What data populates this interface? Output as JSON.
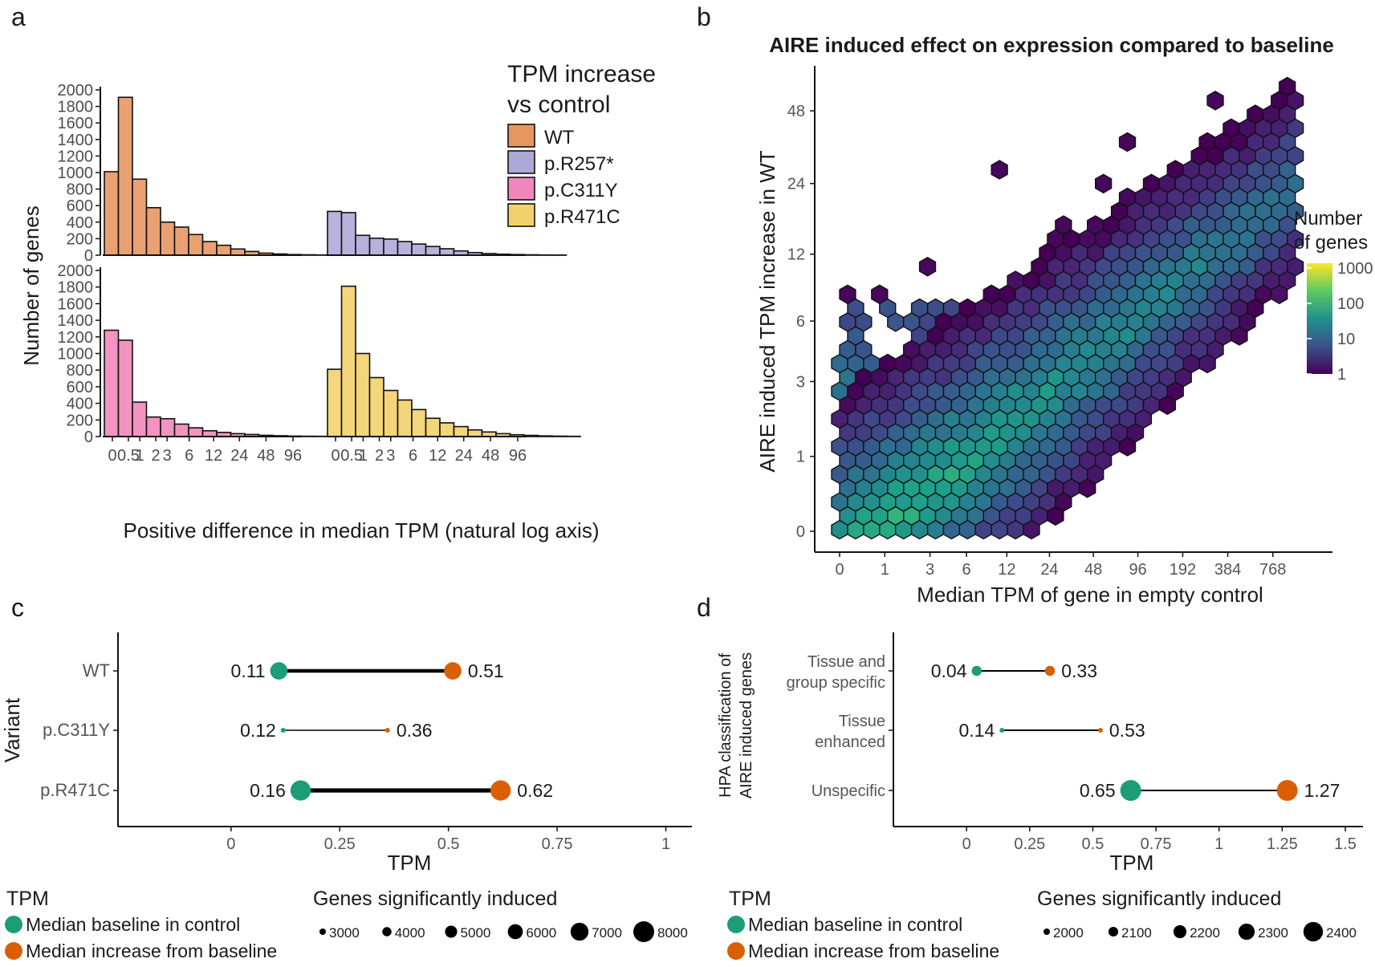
{
  "panels": {
    "a": "a",
    "b": "b",
    "c": "c",
    "d": "d"
  },
  "colors": {
    "WT": "#e58a4e",
    "p.R257*": "#a59ed2",
    "p.C311Y": "#ef78b3",
    "p.R471C": "#f0cb5b",
    "baseline": "#1b9e77",
    "increase": "#d95f02"
  },
  "chart_data": [
    {
      "id": "a",
      "type": "bar",
      "subtype": "faceted histogram",
      "xlabel": "Positive difference in median TPM (natural log axis)",
      "ylabel": "Number of genes",
      "x_ticks": [
        "0",
        "0.5",
        "1",
        "2",
        "3",
        "6",
        "12",
        "24",
        "48",
        "96"
      ],
      "x_tick_values": [
        0,
        0.5,
        1,
        2,
        3,
        6,
        12,
        24,
        48,
        96
      ],
      "y_ticks": [
        "0",
        "200",
        "400",
        "600",
        "800",
        "1000",
        "1200",
        "1400",
        "1600",
        "1800",
        "2000"
      ],
      "ylim": [
        0,
        2000
      ],
      "legend_title_line1": "TPM increase",
      "legend_title_line2": "vs control",
      "series": [
        {
          "name": "WT",
          "values": [
            1010,
            1910,
            920,
            575,
            400,
            340,
            250,
            165,
            120,
            75,
            45,
            25,
            15,
            8,
            5,
            3,
            2
          ]
        },
        {
          "name": "p.R257*",
          "values": [
            530,
            515,
            240,
            205,
            195,
            165,
            135,
            105,
            78,
            52,
            32,
            20,
            12,
            8,
            5,
            3,
            2
          ]
        },
        {
          "name": "p.C311Y",
          "values": [
            1280,
            1160,
            415,
            235,
            215,
            150,
            105,
            70,
            50,
            35,
            25,
            15,
            10,
            6,
            4,
            3,
            2
          ]
        },
        {
          "name": "p.R471C",
          "values": [
            810,
            1810,
            1000,
            710,
            555,
            440,
            325,
            220,
            165,
            120,
            80,
            55,
            35,
            22,
            14,
            8,
            5,
            3
          ]
        }
      ]
    },
    {
      "id": "b",
      "type": "heatmap",
      "subtype": "hexbin",
      "title": "AIRE induced effect on expression compared to baseline",
      "xlabel": "Median TPM of gene in empty control",
      "ylabel": "AIRE induced TPM increase in WT",
      "x_ticks": [
        "0",
        "1",
        "3",
        "6",
        "12",
        "24",
        "48",
        "96",
        "192",
        "384",
        "768"
      ],
      "x_tick_values": [
        0,
        1,
        3,
        6,
        12,
        24,
        48,
        96,
        192,
        384,
        768
      ],
      "y_ticks": [
        "0",
        "1",
        "3",
        "6",
        "12",
        "24",
        "48"
      ],
      "y_tick_values": [
        0,
        1,
        3,
        6,
        12,
        24,
        48
      ],
      "legend_title_line1": "Number",
      "legend_title_line2": "of genes",
      "legend_ticks": [
        "1",
        "10",
        "100",
        "1000"
      ]
    },
    {
      "id": "c",
      "type": "scatter",
      "subtype": "dumbbell",
      "xlabel": "TPM",
      "ylabel": "Variant",
      "x_ticks": [
        "0",
        "0.25",
        "0.5",
        "0.75",
        "1"
      ],
      "x_tick_values": [
        0,
        0.25,
        0.5,
        0.75,
        1
      ],
      "xlim": [
        -0.26,
        1.06
      ],
      "categories": [
        "WT",
        "p.C311Y",
        "p.R471C"
      ],
      "baseline": [
        0.11,
        0.12,
        0.16
      ],
      "increase": [
        0.51,
        0.36,
        0.62
      ],
      "baseline_labels": [
        "0.11",
        "0.12",
        "0.16"
      ],
      "increase_labels": [
        "0.51",
        "0.36",
        "0.62"
      ],
      "genes_induced": [
        6800,
        2500,
        7800
      ],
      "legend_color_title": "TPM",
      "legend_color_items": [
        "Median baseline in control",
        "Median increase from baseline"
      ],
      "legend_size_title": "Genes significantly induced",
      "legend_size_values": [
        3000,
        4000,
        5000,
        6000,
        7000,
        8000
      ],
      "legend_size_labels": [
        "3000",
        "4000",
        "5000",
        "6000",
        "7000",
        "8000"
      ]
    },
    {
      "id": "d",
      "type": "scatter",
      "subtype": "dumbbell",
      "xlabel": "TPM",
      "ylabel_line1": "HPA classification of",
      "ylabel_line2": "AIRE induced genes",
      "x_ticks": [
        "0",
        "0.25",
        "0.5",
        "0.75",
        "1",
        "1.25",
        "1.5"
      ],
      "x_tick_values": [
        0,
        0.25,
        0.5,
        0.75,
        1,
        1.25,
        1.5
      ],
      "xlim": [
        -0.29,
        1.57
      ],
      "categories": [
        {
          "line1": "Tissue and",
          "line2": "group specific"
        },
        {
          "line1": "Tissue",
          "line2": "enhanced"
        },
        {
          "line1": "Unspecific",
          "line2": ""
        }
      ],
      "baseline": [
        0.04,
        0.14,
        0.65
      ],
      "increase": [
        0.33,
        0.53,
        1.27
      ],
      "baseline_labels": [
        "0.04",
        "0.14",
        "0.65"
      ],
      "increase_labels": [
        "0.33",
        "0.53",
        "1.27"
      ],
      "genes_induced": [
        2110,
        1950,
        2440
      ],
      "legend_color_title": "TPM",
      "legend_color_items": [
        "Median baseline in control",
        "Median increase from baseline"
      ],
      "legend_size_title": "Genes significantly induced",
      "legend_size_values": [
        2000,
        2100,
        2200,
        2300,
        2400
      ],
      "legend_size_labels": [
        "2000",
        "2100",
        "2200",
        "2300",
        "2400"
      ]
    }
  ]
}
